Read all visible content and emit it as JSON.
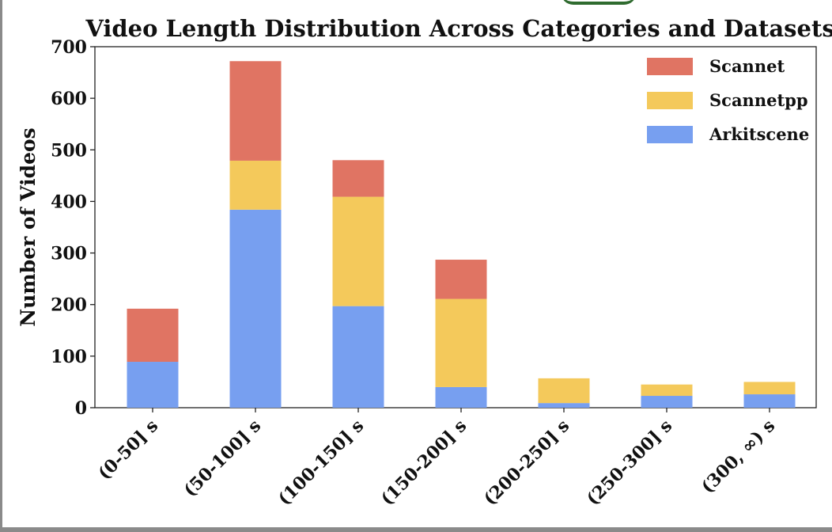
{
  "chart_data": {
    "type": "bar",
    "stacked": true,
    "title": "Video Length Distribution Across Categories and Datasets",
    "xlabel": "",
    "ylabel": "Number of Videos",
    "categories": [
      "(0-50] s",
      "(50-100] s",
      "(100-150] s",
      "(150-200] s",
      "(200-250] s",
      "(250-300] s",
      "(300, ∞) s"
    ],
    "series": [
      {
        "name": "Arkitscene",
        "color": "#779ff0",
        "values": [
          89,
          384,
          197,
          40,
          9,
          23,
          26
        ]
      },
      {
        "name": "Scannetpp",
        "color": "#f4c95b",
        "values": [
          0,
          95,
          212,
          171,
          48,
          22,
          24
        ]
      },
      {
        "name": "Scannet",
        "color": "#e07463",
        "values": [
          103,
          193,
          71,
          76,
          0,
          0,
          0
        ]
      }
    ],
    "ylim": [
      0,
      700
    ],
    "yticks": [
      0,
      100,
      200,
      300,
      400,
      500,
      600,
      700
    ],
    "legend_order": [
      "Scannet",
      "Scannetpp",
      "Arkitscene"
    ],
    "legend_position": "top-right",
    "grid": false
  }
}
